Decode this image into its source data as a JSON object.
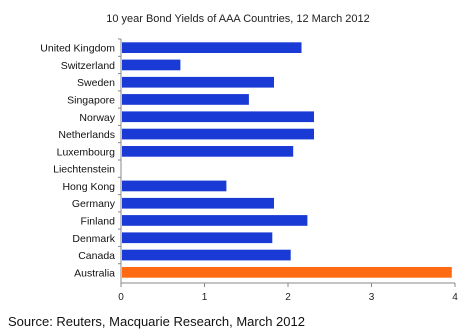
{
  "chart_data": {
    "type": "bar",
    "orientation": "horizontal",
    "title": "10 year Bond Yields of AAA Countries, 12 March 2012",
    "categories": [
      "United Kingdom",
      "Switzerland",
      "Sweden",
      "Singapore",
      "Norway",
      "Netherlands",
      "Luxembourg",
      "Liechtenstein",
      "Hong Kong",
      "Germany",
      "Finland",
      "Denmark",
      "Canada",
      "Australia"
    ],
    "values": [
      2.15,
      0.7,
      1.82,
      1.52,
      2.3,
      2.3,
      2.05,
      0,
      1.25,
      1.82,
      2.22,
      1.8,
      2.02,
      3.95
    ],
    "xlim": [
      0,
      4
    ],
    "xticks": [
      "0",
      "1",
      "2",
      "3",
      "4"
    ],
    "xlabel": "",
    "ylabel": "",
    "grid": false,
    "colors": {
      "default": "#1a3ad6",
      "highlight": "#ff6a13"
    },
    "highlight_category": "Australia"
  },
  "source": "Source: Reuters, Macquarie Research, March 2012"
}
